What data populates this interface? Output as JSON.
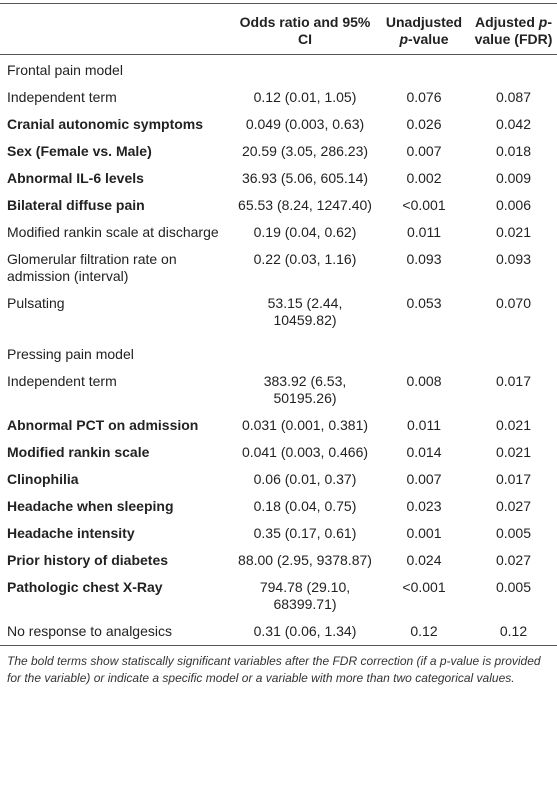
{
  "header": {
    "columns": [
      {
        "parts": [
          "Odds ratio and 95% CI"
        ],
        "italic": [
          false
        ]
      },
      {
        "parts": [
          "Unadjusted ",
          "p",
          "-value"
        ],
        "italic": [
          false,
          true,
          false
        ]
      },
      {
        "parts": [
          "Adjusted ",
          "p",
          "-value (FDR)"
        ],
        "italic": [
          false,
          true,
          false
        ]
      }
    ]
  },
  "table": {
    "rows": [
      {
        "section": "Frontal pain model"
      },
      {
        "cells": [
          "Independent term",
          "0.12 (0.01, 1.05)",
          "0.076",
          "0.087"
        ],
        "bold": false
      },
      {
        "cells": [
          "Cranial autonomic symptoms",
          "0.049 (0.003, 0.63)",
          "0.026",
          "0.042"
        ],
        "bold": true
      },
      {
        "cells": [
          "Sex (Female vs. Male)",
          "20.59 (3.05, 286.23)",
          "0.007",
          "0.018"
        ],
        "bold": true
      },
      {
        "cells": [
          "Abnormal IL-6 levels",
          "36.93 (5.06, 605.14)",
          "0.002",
          "0.009"
        ],
        "bold": true
      },
      {
        "cells": [
          "Bilateral diffuse pain",
          "65.53 (8.24, 1247.40)",
          "<0.001",
          "0.006"
        ],
        "bold": true
      },
      {
        "cells": [
          "Modified rankin scale at discharge",
          "0.19 (0.04, 0.62)",
          "0.011",
          "0.021"
        ],
        "bold": false
      },
      {
        "cells": [
          "Glomerular filtration rate on admission (interval)",
          "0.22 (0.03, 1.16)",
          "0.093",
          "0.093"
        ],
        "bold": false
      },
      {
        "cells": [
          "Pulsating",
          "53.15 (2.44, 10459.82)",
          "0.053",
          "0.070"
        ],
        "bold": false
      },
      {
        "section": "Pressing pain model"
      },
      {
        "cells": [
          "Independent term",
          "383.92 (6.53, 50195.26)",
          "0.008",
          "0.017"
        ],
        "bold": false
      },
      {
        "cells": [
          "Abnormal PCT on admission",
          "0.031 (0.001, 0.381)",
          "0.011",
          "0.021"
        ],
        "bold": true
      },
      {
        "cells": [
          "Modified rankin scale",
          "0.041 (0.003, 0.466)",
          "0.014",
          "0.021"
        ],
        "bold": true
      },
      {
        "cells": [
          "Clinophilia",
          "0.06 (0.01, 0.37)",
          "0.007",
          "0.017"
        ],
        "bold": true
      },
      {
        "cells": [
          "Headache when sleeping",
          "0.18 (0.04, 0.75)",
          "0.023",
          "0.027"
        ],
        "bold": true
      },
      {
        "cells": [
          "Headache intensity",
          "0.35 (0.17, 0.61)",
          "0.001",
          "0.005"
        ],
        "bold": true
      },
      {
        "cells": [
          "Prior history of diabetes",
          "88.00 (2.95, 9378.87)",
          "0.024",
          "0.027"
        ],
        "bold": true
      },
      {
        "cells": [
          "Pathologic chest X-Ray",
          "794.78 (29.10, 68399.71)",
          "<0.001",
          "0.005"
        ],
        "bold": true
      },
      {
        "cells": [
          "No response to analgesics",
          "0.31 (0.06, 1.34)",
          "0.12",
          "0.12"
        ],
        "bold": false
      }
    ]
  },
  "footnote": "The bold terms show statiscally significant variables after the FDR correction (if a p-value is provided for the variable) or indicate a specific model or a variable with more than two categorical values."
}
